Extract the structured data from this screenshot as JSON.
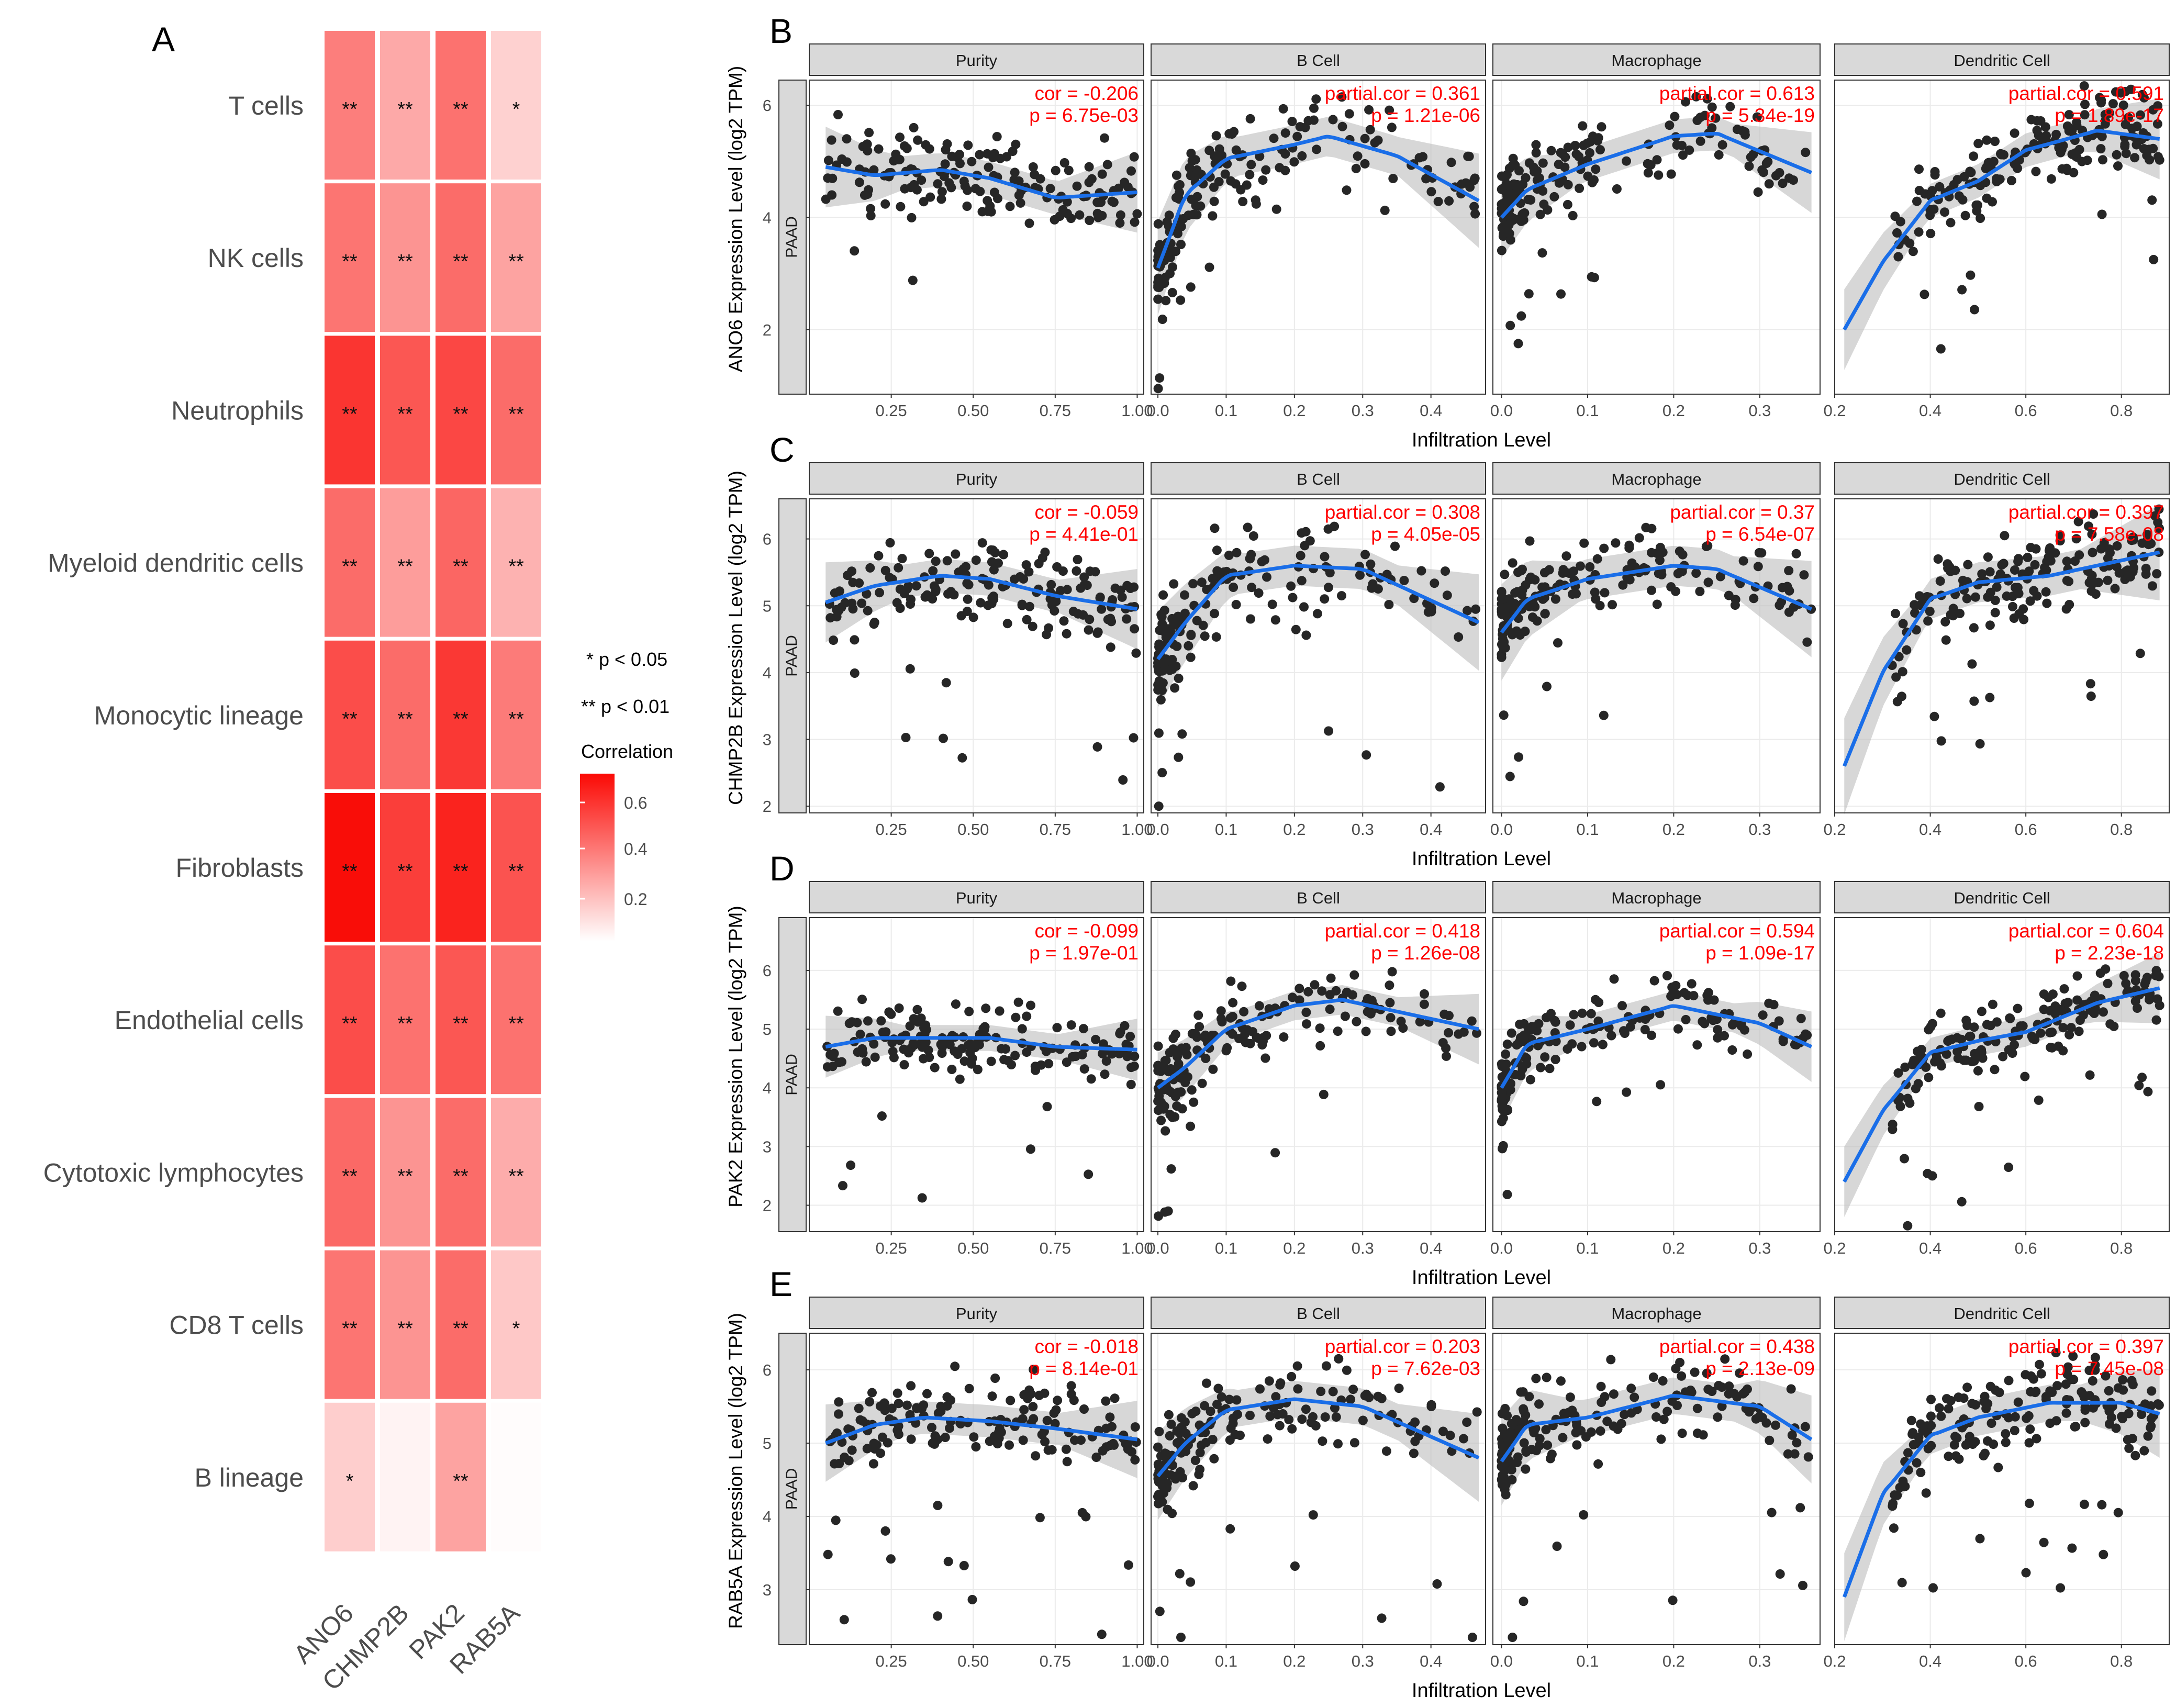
{
  "figure": {
    "panel_letters": [
      "A",
      "B",
      "C",
      "D",
      "E"
    ],
    "heatmap": {
      "row_labels": [
        "T cells",
        "NK cells",
        "Neutrophils",
        "Myeloid dendritic cells",
        "Monocytic lineage",
        "Fibroblasts",
        "Endothelial cells",
        "Cytotoxic lymphocytes",
        "CD8 T cells",
        "B lineage"
      ],
      "column_labels": [
        "ANO6",
        "CHMP2B",
        "PAK2",
        "RAB5A"
      ],
      "legend": {
        "note1": "* p < 0.05",
        "note2": "** p < 0.01",
        "title": "Correlation",
        "ticks": [
          "0.6",
          "0.4",
          "0.2"
        ]
      }
    },
    "scatter_common": {
      "facet_titles": [
        "Purity",
        "B Cell",
        "Macrophage",
        "Dendritic Cell"
      ],
      "strip_label": "PAAD",
      "x_label": "Infiltration Level",
      "x_ticks": [
        [
          "0.25",
          "0.50",
          "0.75",
          "1.00"
        ],
        [
          "0.0",
          "0.1",
          "0.2",
          "0.3",
          "0.4"
        ],
        [
          "0.0",
          "0.1",
          "0.2",
          "0.3"
        ],
        [
          "0.2",
          "0.4",
          "0.6",
          "0.8"
        ]
      ]
    }
  },
  "chart_data": [
    {
      "type": "heatmap",
      "title": "A",
      "rows": [
        "T cells",
        "NK cells",
        "Neutrophils",
        "Myeloid dendritic cells",
        "Monocytic lineage",
        "Fibroblasts",
        "Endothelial cells",
        "Cytotoxic lymphocytes",
        "CD8 T cells",
        "B lineage"
      ],
      "columns": [
        "ANO6",
        "CHMP2B",
        "PAK2",
        "RAB5A"
      ],
      "values": [
        [
          0.42,
          0.28,
          0.46,
          0.15
        ],
        [
          0.45,
          0.35,
          0.48,
          0.3
        ],
        [
          0.66,
          0.55,
          0.6,
          0.48
        ],
        [
          0.48,
          0.32,
          0.5,
          0.25
        ],
        [
          0.58,
          0.48,
          0.65,
          0.43
        ],
        [
          0.79,
          0.63,
          0.72,
          0.56
        ],
        [
          0.58,
          0.46,
          0.55,
          0.46
        ],
        [
          0.49,
          0.35,
          0.48,
          0.27
        ],
        [
          0.45,
          0.35,
          0.48,
          0.18
        ],
        [
          0.16,
          0.04,
          0.3,
          0.01
        ]
      ],
      "significance": [
        [
          "**",
          "**",
          "**",
          "*"
        ],
        [
          "**",
          "**",
          "**",
          "**"
        ],
        [
          "**",
          "**",
          "**",
          "**"
        ],
        [
          "**",
          "**",
          "**",
          "**"
        ],
        [
          "**",
          "**",
          "**",
          "**"
        ],
        [
          "**",
          "**",
          "**",
          "**"
        ],
        [
          "**",
          "**",
          "**",
          "**"
        ],
        [
          "**",
          "**",
          "**",
          "**"
        ],
        [
          "**",
          "**",
          "**",
          "*"
        ],
        [
          "*",
          "",
          "**",
          ""
        ]
      ],
      "legend_title": "Correlation",
      "color_range": [
        0,
        0.8
      ]
    },
    {
      "type": "scatter",
      "title": "B",
      "ylabel": "ANO6 Expression Level (log2 TPM)",
      "xlabel": "Infiltration Level",
      "ylim": [
        0.85,
        6.45
      ],
      "y_ticks": [
        2,
        4,
        6
      ],
      "facets": [
        {
          "name": "Purity",
          "xlim": [
            0.0,
            1.02
          ],
          "stat_label": "cor = -0.206",
          "p_label": "p = 6.75e-03",
          "trend_x": [
            0.05,
            0.2,
            0.4,
            0.55,
            0.75,
            1.0
          ],
          "trend_y": [
            4.9,
            4.75,
            4.85,
            4.7,
            4.35,
            4.45
          ],
          "band": 0.3,
          "x_range": [
            0.05,
            1.0
          ],
          "shape": "flat",
          "y_center": 4.75,
          "y_spread": 0.65,
          "n": 165,
          "seed": 11
        },
        {
          "name": "B Cell",
          "xlim": [
            -0.01,
            0.48
          ],
          "stat_label": "partial.cor = 0.361",
          "p_label": "p = 1.21e-06",
          "trend_x": [
            0.0,
            0.04,
            0.1,
            0.2,
            0.25,
            0.35,
            0.47
          ],
          "trend_y": [
            3.1,
            4.4,
            5.05,
            5.3,
            5.45,
            5.1,
            4.3
          ],
          "band": 0.35,
          "x_range": [
            0.0,
            0.47
          ],
          "shape": "rise",
          "y_center": 4.9,
          "y_spread": 0.7,
          "n": 175,
          "seed": 22
        },
        {
          "name": "Macrophage",
          "xlim": [
            -0.01,
            0.37
          ],
          "stat_label": "partial.cor = 0.613",
          "p_label": "p = 5.34e-19",
          "trend_x": [
            0.0,
            0.03,
            0.1,
            0.2,
            0.25,
            0.36
          ],
          "trend_y": [
            4.0,
            4.5,
            4.95,
            5.45,
            5.5,
            4.8
          ],
          "band": 0.3,
          "x_range": [
            0.0,
            0.36
          ],
          "shape": "rise",
          "y_center": 4.9,
          "y_spread": 0.65,
          "n": 175,
          "seed": 33
        },
        {
          "name": "Dendritic Cell",
          "xlim": [
            0.2,
            0.9
          ],
          "stat_label": "partial.cor = 0.591",
          "p_label": "p = 1.89e-17",
          "trend_x": [
            0.22,
            0.3,
            0.4,
            0.5,
            0.6,
            0.75,
            0.88
          ],
          "trend_y": [
            2.0,
            3.2,
            4.3,
            4.65,
            5.2,
            5.55,
            5.4
          ],
          "band": 0.3,
          "x_range": [
            0.22,
            0.88
          ],
          "shape": "sat",
          "y_center": 4.8,
          "y_spread": 0.6,
          "n": 175,
          "seed": 44
        }
      ]
    },
    {
      "type": "scatter",
      "title": "C",
      "ylabel": "CHMP2B Expression Level (log2 TPM)",
      "xlabel": "Infiltration Level",
      "ylim": [
        1.9,
        6.6
      ],
      "y_ticks": [
        2,
        3,
        4,
        5,
        6
      ],
      "facets": [
        {
          "name": "Purity",
          "xlim": [
            0.0,
            1.02
          ],
          "stat_label": "cor = -0.059",
          "p_label": "p = 4.41e-01",
          "trend_x": [
            0.05,
            0.2,
            0.4,
            0.55,
            0.75,
            1.0
          ],
          "trend_y": [
            5.05,
            5.3,
            5.45,
            5.4,
            5.15,
            4.95
          ],
          "band": 0.25,
          "x_range": [
            0.05,
            1.0
          ],
          "shape": "flat",
          "y_center": 5.2,
          "y_spread": 0.55,
          "n": 165,
          "seed": 55
        },
        {
          "name": "B Cell",
          "xlim": [
            -0.01,
            0.48
          ],
          "stat_label": "partial.cor = 0.308",
          "p_label": "p = 4.05e-05",
          "trend_x": [
            0.0,
            0.04,
            0.1,
            0.2,
            0.3,
            0.47
          ],
          "trend_y": [
            4.2,
            4.75,
            5.45,
            5.6,
            5.55,
            4.75
          ],
          "band": 0.3,
          "x_range": [
            0.0,
            0.47
          ],
          "shape": "rise",
          "y_center": 5.2,
          "y_spread": 0.6,
          "n": 175,
          "seed": 66
        },
        {
          "name": "Macrophage",
          "xlim": [
            -0.01,
            0.37
          ],
          "stat_label": "partial.cor = 0.37",
          "p_label": "p = 6.54e-07",
          "trend_x": [
            0.0,
            0.03,
            0.1,
            0.2,
            0.25,
            0.36
          ],
          "trend_y": [
            4.6,
            5.1,
            5.4,
            5.6,
            5.55,
            4.95
          ],
          "band": 0.3,
          "x_range": [
            0.0,
            0.36
          ],
          "shape": "rise",
          "y_center": 5.2,
          "y_spread": 0.55,
          "n": 175,
          "seed": 77
        },
        {
          "name": "Dendritic Cell",
          "xlim": [
            0.2,
            0.9
          ],
          "stat_label": "partial.cor = 0.397",
          "p_label": "p = 7.58e-08",
          "trend_x": [
            0.22,
            0.3,
            0.4,
            0.5,
            0.65,
            0.88
          ],
          "trend_y": [
            2.6,
            4.0,
            5.1,
            5.35,
            5.45,
            5.8
          ],
          "band": 0.3,
          "x_range": [
            0.22,
            0.88
          ],
          "shape": "sat",
          "y_center": 5.2,
          "y_spread": 0.55,
          "n": 175,
          "seed": 88
        }
      ]
    },
    {
      "type": "scatter",
      "title": "D",
      "ylabel": "PAK2 Expression Level (log2 TPM)",
      "xlabel": "Infiltration Level",
      "ylim": [
        1.55,
        6.9
      ],
      "y_ticks": [
        2,
        3,
        4,
        5,
        6
      ],
      "facets": [
        {
          "name": "Purity",
          "xlim": [
            0.0,
            1.02
          ],
          "stat_label": "cor = -0.099",
          "p_label": "p = 1.97e-01",
          "trend_x": [
            0.05,
            0.2,
            0.4,
            0.55,
            0.75,
            1.0
          ],
          "trend_y": [
            4.7,
            4.85,
            4.85,
            4.85,
            4.7,
            4.65
          ],
          "band": 0.22,
          "x_range": [
            0.05,
            1.0
          ],
          "shape": "flat",
          "y_center": 4.8,
          "y_spread": 0.5,
          "n": 165,
          "seed": 99
        },
        {
          "name": "B Cell",
          "xlim": [
            -0.01,
            0.48
          ],
          "stat_label": "partial.cor = 0.418",
          "p_label": "p = 1.26e-08",
          "trend_x": [
            0.0,
            0.04,
            0.1,
            0.2,
            0.27,
            0.47
          ],
          "trend_y": [
            4.0,
            4.35,
            5.0,
            5.4,
            5.5,
            5.0
          ],
          "band": 0.25,
          "x_range": [
            0.0,
            0.47
          ],
          "shape": "rise",
          "y_center": 4.9,
          "y_spread": 0.55,
          "n": 175,
          "seed": 111
        },
        {
          "name": "Macrophage",
          "xlim": [
            -0.01,
            0.37
          ],
          "stat_label": "partial.cor = 0.594",
          "p_label": "p = 1.09e-17",
          "trend_x": [
            0.0,
            0.03,
            0.1,
            0.2,
            0.3,
            0.36
          ],
          "trend_y": [
            4.0,
            4.75,
            5.0,
            5.4,
            5.1,
            4.7
          ],
          "band": 0.25,
          "x_range": [
            0.0,
            0.36
          ],
          "shape": "rise",
          "y_center": 4.9,
          "y_spread": 0.5,
          "n": 175,
          "seed": 122
        },
        {
          "name": "Dendritic Cell",
          "xlim": [
            0.2,
            0.9
          ],
          "stat_label": "partial.cor = 0.604",
          "p_label": "p = 2.23e-18",
          "trend_x": [
            0.22,
            0.3,
            0.4,
            0.5,
            0.6,
            0.75,
            0.88
          ],
          "trend_y": [
            2.4,
            3.6,
            4.6,
            4.8,
            4.95,
            5.45,
            5.7
          ],
          "band": 0.25,
          "x_range": [
            0.22,
            0.88
          ],
          "shape": "sat",
          "y_center": 4.8,
          "y_spread": 0.5,
          "n": 175,
          "seed": 133
        }
      ]
    },
    {
      "type": "scatter",
      "title": "E",
      "ylabel": "RAB5A Expression Level (log2 TPM)",
      "xlabel": "Infiltration Level",
      "ylim": [
        2.25,
        6.5
      ],
      "y_ticks": [
        3,
        4,
        5,
        6
      ],
      "facets": [
        {
          "name": "Purity",
          "xlim": [
            0.0,
            1.02
          ],
          "stat_label": "cor = -0.018",
          "p_label": "p = 8.14e-01",
          "trend_x": [
            0.05,
            0.2,
            0.35,
            0.55,
            0.75,
            1.0
          ],
          "trend_y": [
            5.0,
            5.25,
            5.35,
            5.3,
            5.2,
            5.05
          ],
          "band": 0.22,
          "x_range": [
            0.05,
            1.0
          ],
          "shape": "flat",
          "y_center": 5.2,
          "y_spread": 0.5,
          "n": 165,
          "seed": 144
        },
        {
          "name": "B Cell",
          "xlim": [
            -0.01,
            0.48
          ],
          "stat_label": "partial.cor = 0.203",
          "p_label": "p = 7.62e-03",
          "trend_x": [
            0.0,
            0.04,
            0.1,
            0.2,
            0.3,
            0.47
          ],
          "trend_y": [
            4.55,
            5.0,
            5.45,
            5.6,
            5.5,
            4.8
          ],
          "band": 0.25,
          "x_range": [
            0.0,
            0.47
          ],
          "shape": "rise",
          "y_center": 5.2,
          "y_spread": 0.5,
          "n": 175,
          "seed": 155
        },
        {
          "name": "Macrophage",
          "xlim": [
            -0.01,
            0.37
          ],
          "stat_label": "partial.cor = 0.438",
          "p_label": "p = 2.13e-09",
          "trend_x": [
            0.0,
            0.03,
            0.1,
            0.2,
            0.3,
            0.36
          ],
          "trend_y": [
            4.75,
            5.25,
            5.35,
            5.65,
            5.5,
            5.05
          ],
          "band": 0.25,
          "x_range": [
            0.0,
            0.36
          ],
          "shape": "rise",
          "y_center": 5.2,
          "y_spread": 0.5,
          "n": 175,
          "seed": 166
        },
        {
          "name": "Dendritic Cell",
          "xlim": [
            0.2,
            0.9
          ],
          "stat_label": "partial.cor = 0.397",
          "p_label": "p = 7.45e-08",
          "trend_x": [
            0.22,
            0.3,
            0.4,
            0.5,
            0.65,
            0.8,
            0.88
          ],
          "trend_y": [
            2.9,
            4.3,
            5.1,
            5.35,
            5.55,
            5.55,
            5.4
          ],
          "band": 0.25,
          "x_range": [
            0.22,
            0.88
          ],
          "shape": "sat",
          "y_center": 5.2,
          "y_spread": 0.5,
          "n": 175,
          "seed": 177
        }
      ]
    }
  ]
}
